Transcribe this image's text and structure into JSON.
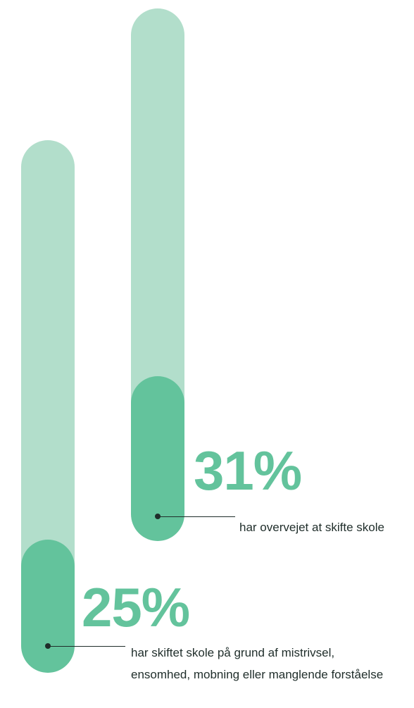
{
  "colors": {
    "track": "#b2decb",
    "fill": "#63c39c",
    "text": "#1f2d2a"
  },
  "chart_data": {
    "type": "bar",
    "ylim": [
      0,
      100
    ],
    "items": [
      {
        "value": 31,
        "value_label": "31%",
        "caption": "har overvejet at skifte skole"
      },
      {
        "value": 25,
        "value_label": "25%",
        "caption": "har skiftet skole på grund af mistrivsel, ensomhed, mobning eller manglende forståelse"
      }
    ]
  }
}
